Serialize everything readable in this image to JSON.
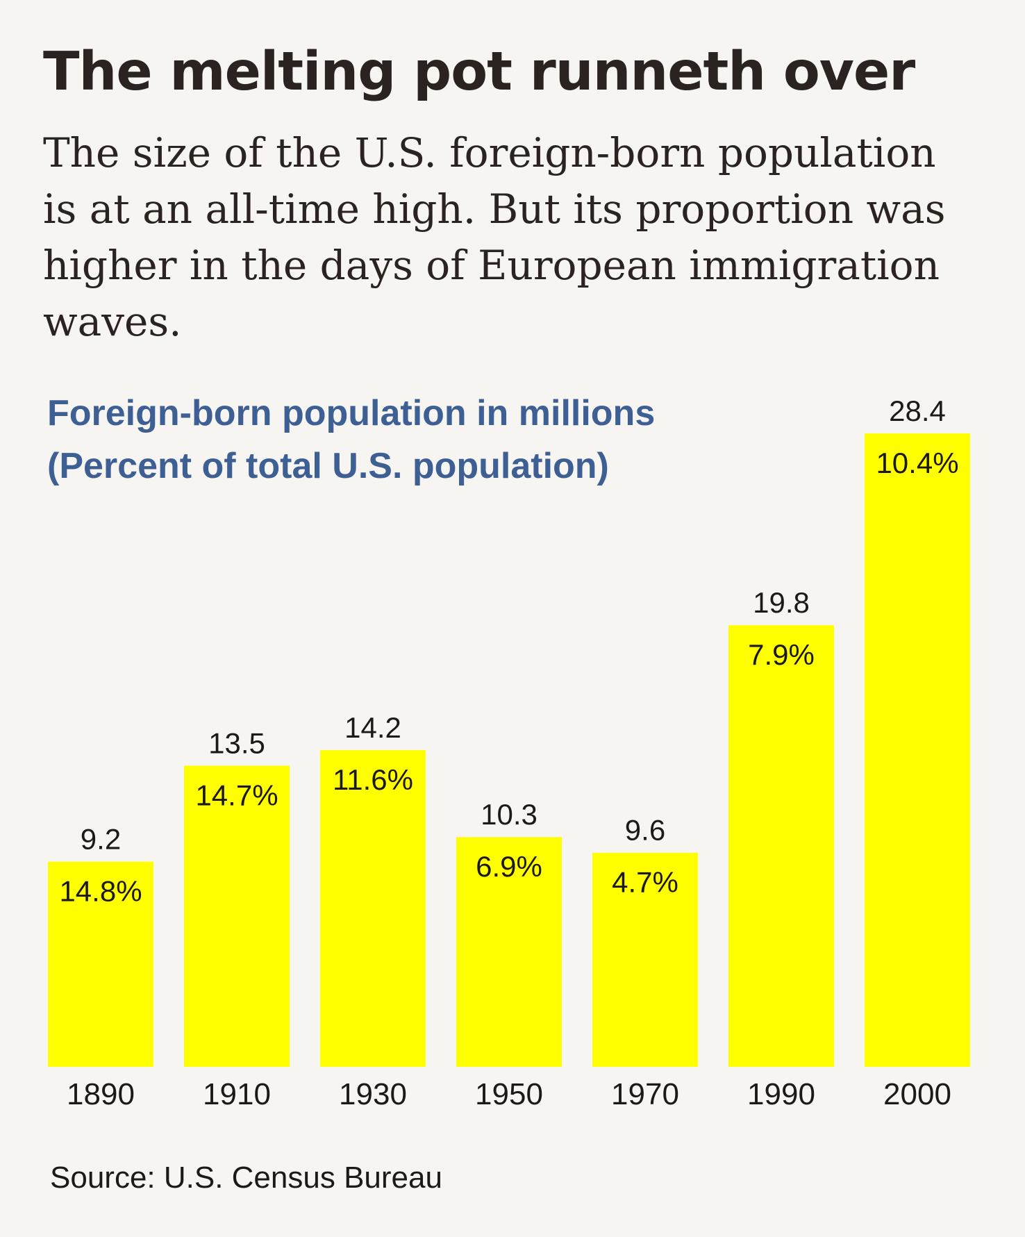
{
  "headline": "The melting pot runneth over",
  "deck": "The size of the U.S. foreign-born population is at an all-time high. But its proportion was higher in the days of European immigration waves.",
  "source": "Source: U.S. Census Bureau",
  "colors": {
    "bar": "#ffff00",
    "chart_title": "#3e5f93",
    "text": "#1c1a18",
    "background": "#f6f5f1"
  },
  "chart_data": {
    "type": "bar",
    "title": "Foreign-born population in millions",
    "subtitle": "(Percent of total U.S. population)",
    "categories": [
      "1890",
      "1910",
      "1930",
      "1950",
      "1970",
      "1990",
      "2000"
    ],
    "values": [
      9.2,
      13.5,
      14.2,
      10.3,
      9.6,
      19.8,
      28.4
    ],
    "value_labels": [
      "9.2",
      "13.5",
      "14.2",
      "10.3",
      "9.6",
      "19.8",
      "28.4"
    ],
    "percent_labels": [
      "14.8%",
      "14.7%",
      "11.6%",
      "6.9%",
      "4.7%",
      "7.9%",
      "10.4%"
    ],
    "percent_values": [
      14.8,
      14.7,
      11.6,
      6.9,
      4.7,
      7.9,
      10.4
    ],
    "xlabel": "",
    "ylabel": "",
    "ylim": [
      0,
      28.4
    ],
    "grid": false,
    "legend": "none"
  }
}
